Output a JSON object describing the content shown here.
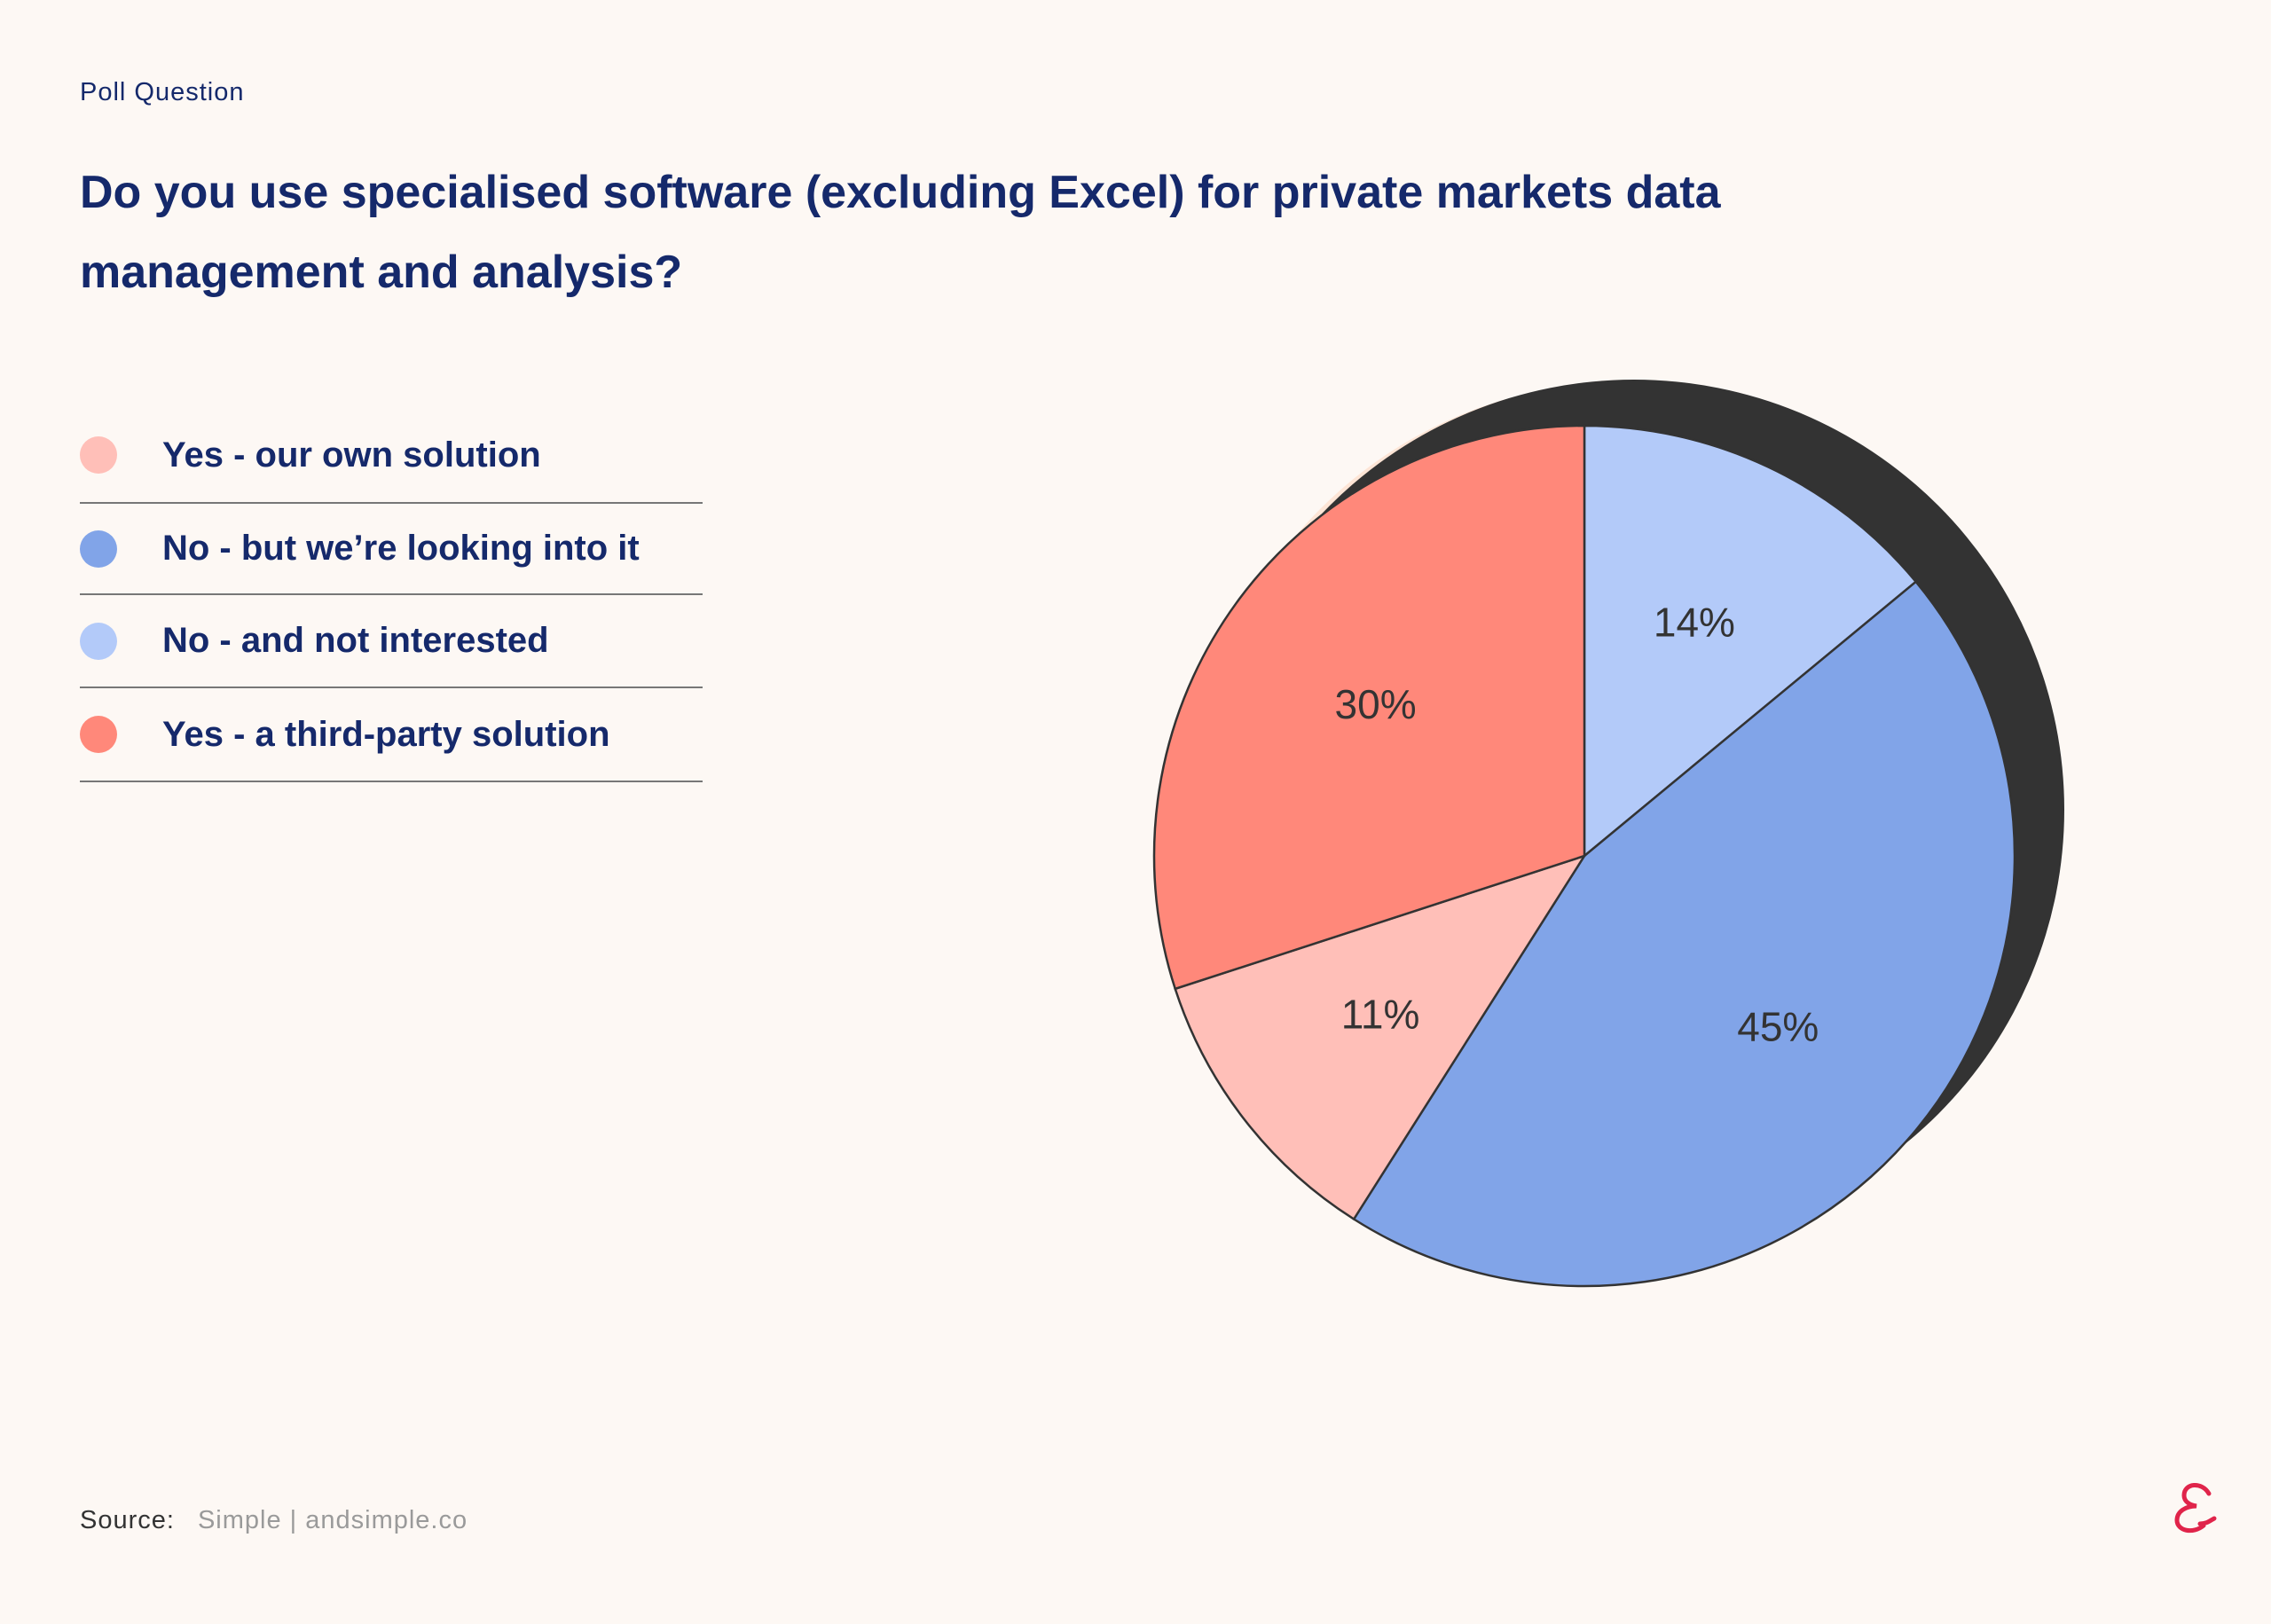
{
  "eyebrow": "Poll Question",
  "title": "Do you use specialised software (excluding Excel) for private markets data management and analysis?",
  "source": {
    "label": "Source:",
    "text": "Simple | andsimple.co"
  },
  "logo_icon": "ampersand-logo-icon",
  "colors": {
    "background": "#fdf8f4",
    "text": "#15296b",
    "shadow": "#333333",
    "shadow_light": "#fde5d6",
    "logo": "#e0244a"
  },
  "legend": [
    {
      "label": "Yes - our own solution",
      "color": "#ffbfb8"
    },
    {
      "label": "No - but we’re looking into it",
      "color": "#81a4e8"
    },
    {
      "label": "No - and not interested",
      "color": "#b3caf9"
    },
    {
      "label": "Yes - a third-party solution",
      "color": "#ff887a"
    }
  ],
  "chart_data": {
    "type": "pie",
    "slices": [
      {
        "name": "No - and not interested",
        "value": 14,
        "label": "14%",
        "color": "#b3caf9"
      },
      {
        "name": "No - but we’re looking into it",
        "value": 45,
        "label": "45%",
        "color": "#81a4e8"
      },
      {
        "name": "Yes - our own solution",
        "value": 11,
        "label": "11%",
        "color": "#ffbfb8"
      },
      {
        "name": "Yes - a third-party solution",
        "value": 30,
        "label": "30%",
        "color": "#ff887a"
      }
    ],
    "start": "12 o'clock",
    "direction": "clockwise",
    "legend_position": "left"
  }
}
